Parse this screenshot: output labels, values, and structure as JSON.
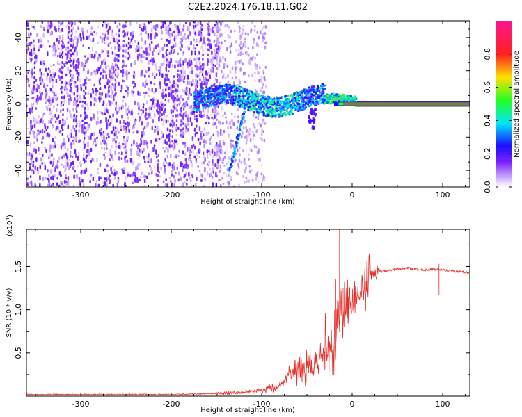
{
  "title": "C2E2.2024.176.18.11.G02",
  "colors": {
    "snr_line": "#e8302a",
    "reference_line": "#e8302a",
    "axis": "#000000"
  },
  "chart_data": [
    {
      "type": "heatmap",
      "xlabel": "Height of straight line (km)",
      "ylabel": "Frequency (Hz)",
      "xlim": [
        -360,
        130
      ],
      "ylim": [
        -50,
        50
      ],
      "x_ticks": [
        -300,
        -200,
        -100,
        0,
        100
      ],
      "y_ticks": [
        -40,
        -20,
        0,
        20,
        40
      ],
      "colorbar": {
        "label": "Normalized spectral amplitude",
        "range": [
          0,
          1
        ],
        "ticks": [
          "0.0",
          "0.2",
          "0.4",
          "0.6",
          "0.8"
        ],
        "colormap": [
          "#ffffff",
          "#9d4dff",
          "#1a10ff",
          "#00e5ff",
          "#22ff22",
          "#ffe000",
          "#ff2020",
          "#ff1493"
        ]
      },
      "reference_line_frequency": 0,
      "features": [
        {
          "kind": "noise-scatter",
          "x": [
            -360,
            -150
          ],
          "y": [
            -50,
            50
          ],
          "amplitude": 0.1
        },
        {
          "kind": "faint-scatter",
          "x": [
            -150,
            -100
          ],
          "y": [
            -50,
            50
          ],
          "amplitude": 0.05
        },
        {
          "kind": "main-band",
          "x": [
            -175,
            5
          ],
          "y": [
            -6,
            8
          ],
          "amplitude": [
            0.2,
            0.6
          ]
        },
        {
          "kind": "diagonal-streak",
          "x0": -135,
          "y0": -40,
          "x1": -115,
          "y1": 5,
          "amplitude": 0.3
        },
        {
          "kind": "signal-line",
          "x": [
            5,
            130
          ],
          "y": 0,
          "amplitude": 0.85
        }
      ]
    },
    {
      "type": "line",
      "xlabel": "Height of straight line (km)",
      "ylabel": "SNR (10 * v/v)",
      "scale_label": "(x10",
      "scale_exponent": "4",
      "scale_suffix": ")",
      "xlim": [
        -360,
        130
      ],
      "ylim": [
        0,
        1.93
      ],
      "x_ticks": [
        -300,
        -200,
        -100,
        0,
        100
      ],
      "y_ticks": [
        0.5,
        1.0,
        1.5
      ],
      "y_tick_labels": [
        "0.5",
        "1.0",
        "1.5"
      ],
      "series": [
        {
          "x": [
            -360,
            -300,
            -250,
            -200,
            -150,
            -120,
            -100,
            -80,
            -70,
            -60,
            -50,
            -40,
            -30,
            -25,
            -20,
            -15,
            -12,
            -10,
            -5,
            0,
            5,
            10,
            15,
            20,
            25,
            30,
            40,
            50,
            60,
            70,
            80,
            90,
            95,
            100,
            110,
            120,
            130
          ],
          "y": [
            0.02,
            0.02,
            0.02,
            0.02,
            0.03,
            0.05,
            0.07,
            0.12,
            0.25,
            0.3,
            0.32,
            0.4,
            0.5,
            0.55,
            0.65,
            0.9,
            1.0,
            1.05,
            1.1,
            1.08,
            1.15,
            1.25,
            1.3,
            1.38,
            1.42,
            1.44,
            1.46,
            1.47,
            1.48,
            1.47,
            1.46,
            1.47,
            1.47,
            1.46,
            1.45,
            1.44,
            1.43
          ],
          "spikes": [
            {
              "x": -14,
              "y": 1.93
            },
            {
              "x": -18,
              "y": 1.35
            },
            {
              "x": -10,
              "y": 1.25
            },
            {
              "x": 96,
              "y": 1.53
            }
          ]
        }
      ]
    }
  ]
}
